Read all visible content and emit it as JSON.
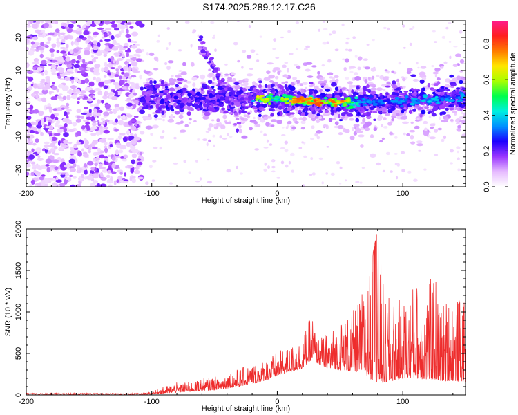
{
  "title": "S174.2025.289.12.17.C26",
  "chart_data": [
    {
      "type": "heatmap",
      "xlabel": "Height of straight line (km)",
      "ylabel": "Frequency (Hz)",
      "xlim": [
        -200,
        150
      ],
      "ylim": [
        -25,
        25
      ],
      "x_ticks": [
        -200,
        -100,
        0,
        100
      ],
      "y_ticks": [
        -20,
        -10,
        0,
        10,
        20
      ],
      "colorbar": {
        "label": "Normalized spectral amplitude",
        "range": [
          0,
          0.93
        ],
        "ticks": [
          "0.0",
          "0.2",
          "0.4",
          "0.6",
          "0.8"
        ],
        "colors": [
          "#ffffff",
          "#e6bbff",
          "#9a35ff",
          "#1c00ff",
          "#0090ff",
          "#00f0e0",
          "#00ff4c",
          "#a8ff00",
          "#ffe600",
          "#ff7a00",
          "#ff1f1f",
          "#ff1a8c"
        ]
      },
      "regions": [
        {
          "name": "noise",
          "x_range": [
            -200,
            -108
          ],
          "f_range": [
            -25,
            25
          ],
          "amplitude": 0.05
        },
        {
          "name": "signal-band",
          "x_range": [
            -108,
            150
          ],
          "center_freq": [
            [
              -108,
              1.5
            ],
            [
              -50,
              1.5
            ],
            [
              0,
              1.6
            ],
            [
              30,
              0.6
            ],
            [
              60,
              0.3
            ],
            [
              100,
              0.6
            ],
            [
              150,
              2.0
            ]
          ],
          "amplitude_peak": 0.93
        },
        {
          "name": "hook-left",
          "points": [
            [
              -62,
              20
            ],
            [
              -52,
              12
            ],
            [
              -44,
              6
            ],
            [
              -38,
              0
            ],
            [
              -34,
              -6
            ]
          ],
          "amplitude": 0.2
        },
        {
          "name": "hook-right",
          "points": [
            [
              -62,
              17
            ],
            [
              -50,
              11
            ],
            [
              -42,
              6
            ],
            [
              -36,
              1
            ],
            [
              -32,
              -5
            ],
            [
              -30,
              -9
            ]
          ],
          "amplitude": 0.2
        }
      ]
    },
    {
      "type": "line",
      "xlabel": "Height of straight line (km)",
      "ylabel": "SNR (10 * v/v)",
      "xlim": [
        -200,
        150
      ],
      "ylim": [
        0,
        2000
      ],
      "x_ticks": [
        -200,
        -100,
        0,
        100
      ],
      "y_ticks": [
        0,
        500,
        1000,
        1500,
        2000
      ],
      "series": [
        {
          "name": "SNR",
          "color": "#ee2d2d",
          "envelope_x": [
            -200,
            -110,
            -100,
            -90,
            -80,
            -70,
            -60,
            -50,
            -40,
            -30,
            -20,
            -10,
            0,
            10,
            20,
            28,
            32,
            40,
            50,
            60,
            65,
            70,
            75,
            80,
            85,
            90,
            100,
            110,
            120,
            125,
            130,
            140,
            150
          ],
          "envelope_y": [
            15,
            15,
            40,
            100,
            150,
            160,
            200,
            220,
            280,
            320,
            380,
            430,
            520,
            580,
            700,
            1000,
            680,
            750,
            900,
            1000,
            1150,
            1350,
            1600,
            2000,
            1300,
            1150,
            1150,
            1400,
            1300,
            1550,
            1100,
            1250,
            1100
          ],
          "baseline_y": [
            5,
            5,
            10,
            20,
            30,
            40,
            50,
            60,
            80,
            100,
            130,
            170,
            230,
            280,
            320,
            430,
            380,
            320,
            300,
            280,
            260,
            220,
            180,
            150,
            140,
            160,
            200,
            200,
            180,
            190,
            160,
            170,
            150
          ]
        }
      ]
    }
  ]
}
